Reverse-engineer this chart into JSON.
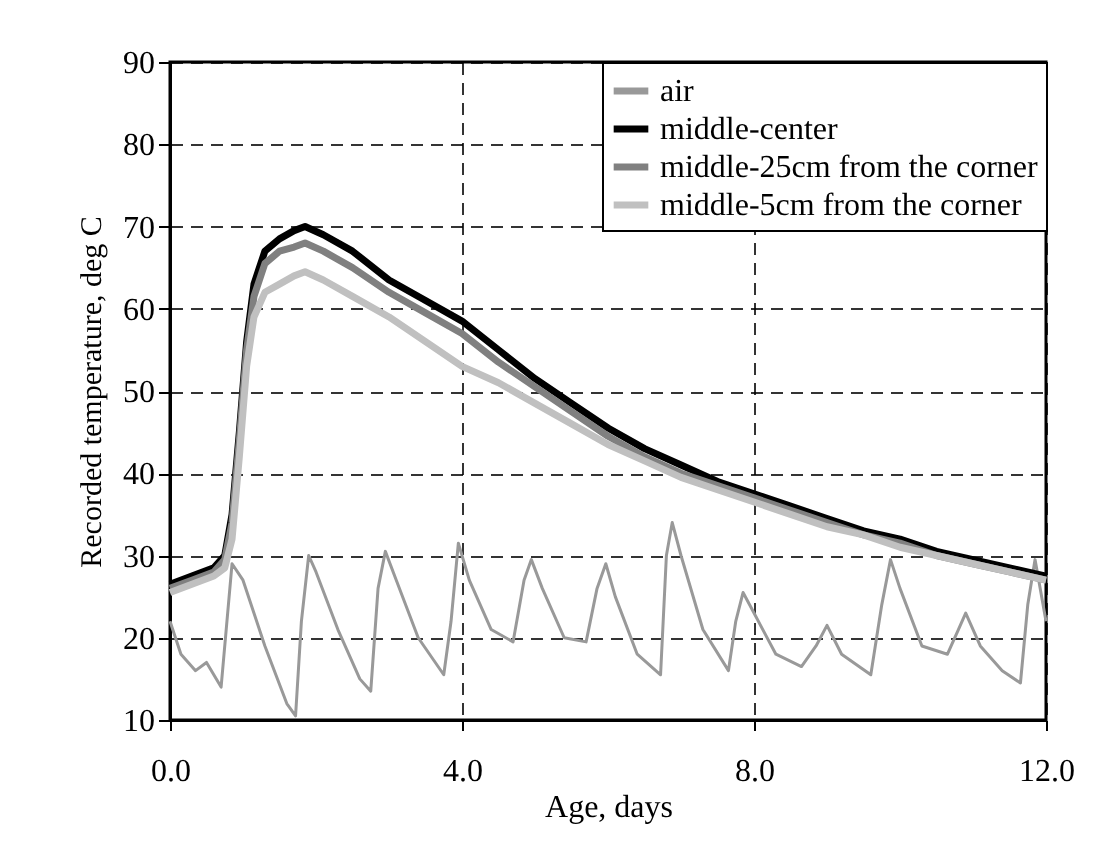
{
  "chart_data": {
    "type": "line",
    "xlabel": "Age, days",
    "ylabel": "Recorded temperature,  deg C",
    "xlim": [
      0,
      12
    ],
    "xticks": [
      {
        "value": 0,
        "label": "0.0"
      },
      {
        "value": 4,
        "label": "4.0"
      },
      {
        "value": 8,
        "label": "8.0"
      },
      {
        "value": 12,
        "label": "12.0"
      }
    ],
    "ylim": [
      10,
      90
    ],
    "yticks": [
      10,
      20,
      30,
      40,
      50,
      60,
      70,
      80,
      90
    ],
    "grid": true,
    "legend": "top right",
    "line_style": "solid",
    "series": [
      {
        "name": "air",
        "color": "#999999",
        "x": [
          0,
          0.15,
          0.35,
          0.5,
          0.7,
          0.85,
          1.0,
          1.3,
          1.6,
          1.72,
          1.8,
          1.9,
          2.0,
          2.3,
          2.6,
          2.75,
          2.85,
          2.95,
          3.1,
          3.4,
          3.75,
          3.85,
          3.95,
          4.1,
          4.4,
          4.7,
          4.85,
          4.95,
          5.1,
          5.4,
          5.7,
          5.85,
          5.97,
          6.1,
          6.4,
          6.72,
          6.8,
          6.88,
          7.0,
          7.3,
          7.65,
          7.75,
          7.85,
          8.0,
          8.3,
          8.65,
          8.85,
          9.0,
          9.2,
          9.6,
          9.75,
          9.87,
          10.0,
          10.3,
          10.65,
          10.8,
          10.9,
          11.1,
          11.4,
          11.65,
          11.75,
          11.85,
          12.0
        ],
        "values": [
          22,
          18,
          16,
          17,
          14,
          29,
          27,
          19,
          12,
          10.5,
          22,
          30,
          28,
          21,
          15,
          13.5,
          26,
          30.5,
          27,
          20,
          15.5,
          22,
          31.5,
          27,
          21,
          19.5,
          27,
          29.5,
          26,
          20,
          19.5,
          26,
          29,
          25,
          18,
          15.5,
          30,
          34,
          30,
          21,
          16,
          22,
          25.5,
          23,
          18,
          16.5,
          19,
          21.5,
          18,
          15.5,
          24,
          29.5,
          26,
          19,
          18,
          21,
          23,
          19,
          16,
          14.5,
          24,
          29.5,
          22
        ]
      },
      {
        "name": "middle-center",
        "color": "#000000",
        "x": [
          0,
          0.3,
          0.6,
          0.75,
          0.85,
          0.95,
          1.05,
          1.15,
          1.3,
          1.5,
          1.7,
          1.85,
          2.1,
          2.5,
          3,
          3.5,
          4,
          4.5,
          5,
          5.5,
          6,
          6.5,
          7,
          7.5,
          8,
          8.5,
          9,
          9.5,
          10,
          10.5,
          11,
          11.5,
          12
        ],
        "values": [
          26.5,
          27.5,
          28.5,
          30,
          35,
          45,
          56,
          63,
          67,
          68.5,
          69.5,
          70,
          69,
          67,
          63.5,
          61,
          58.5,
          55,
          51.5,
          48.5,
          45.5,
          43,
          41,
          39,
          37.5,
          36,
          34.5,
          33,
          32,
          30.5,
          29.5,
          28.5,
          27.5
        ]
      },
      {
        "name": "middle-25cm from the corner",
        "color": "#808080",
        "x": [
          0,
          0.3,
          0.6,
          0.75,
          0.85,
          0.95,
          1.05,
          1.15,
          1.3,
          1.5,
          1.7,
          1.85,
          2.1,
          2.5,
          3,
          3.5,
          4,
          4.5,
          5,
          5.5,
          6,
          6.5,
          7,
          7.5,
          8,
          8.5,
          9,
          9.5,
          10,
          10.5,
          11,
          11.5,
          12
        ],
        "values": [
          26,
          27,
          28,
          29.5,
          34,
          44,
          55,
          61.5,
          65.5,
          67,
          67.5,
          68,
          67,
          65,
          62,
          59.5,
          57,
          53.5,
          50.5,
          47.5,
          44.5,
          42,
          40,
          38.5,
          37,
          35.5,
          34,
          32.5,
          31.5,
          30,
          29,
          28,
          27
        ]
      },
      {
        "name": "middle-5cm from the corner",
        "color": "#c0c0c0",
        "x": [
          0,
          0.3,
          0.6,
          0.75,
          0.85,
          0.95,
          1.05,
          1.15,
          1.3,
          1.5,
          1.7,
          1.85,
          2.1,
          2.5,
          3,
          3.5,
          4,
          4.5,
          5,
          5.5,
          6,
          6.5,
          7,
          7.5,
          8,
          8.5,
          9,
          9.5,
          10,
          10.5,
          11,
          11.5,
          12
        ],
        "values": [
          25.5,
          26.5,
          27.5,
          28.5,
          32,
          42,
          53,
          59,
          62,
          63,
          64,
          64.5,
          63.5,
          61.5,
          59,
          56,
          53,
          51,
          48.5,
          46,
          43.5,
          41.5,
          39.5,
          38,
          36.5,
          35,
          33.5,
          32.5,
          31,
          30,
          29,
          28,
          27
        ]
      }
    ]
  }
}
